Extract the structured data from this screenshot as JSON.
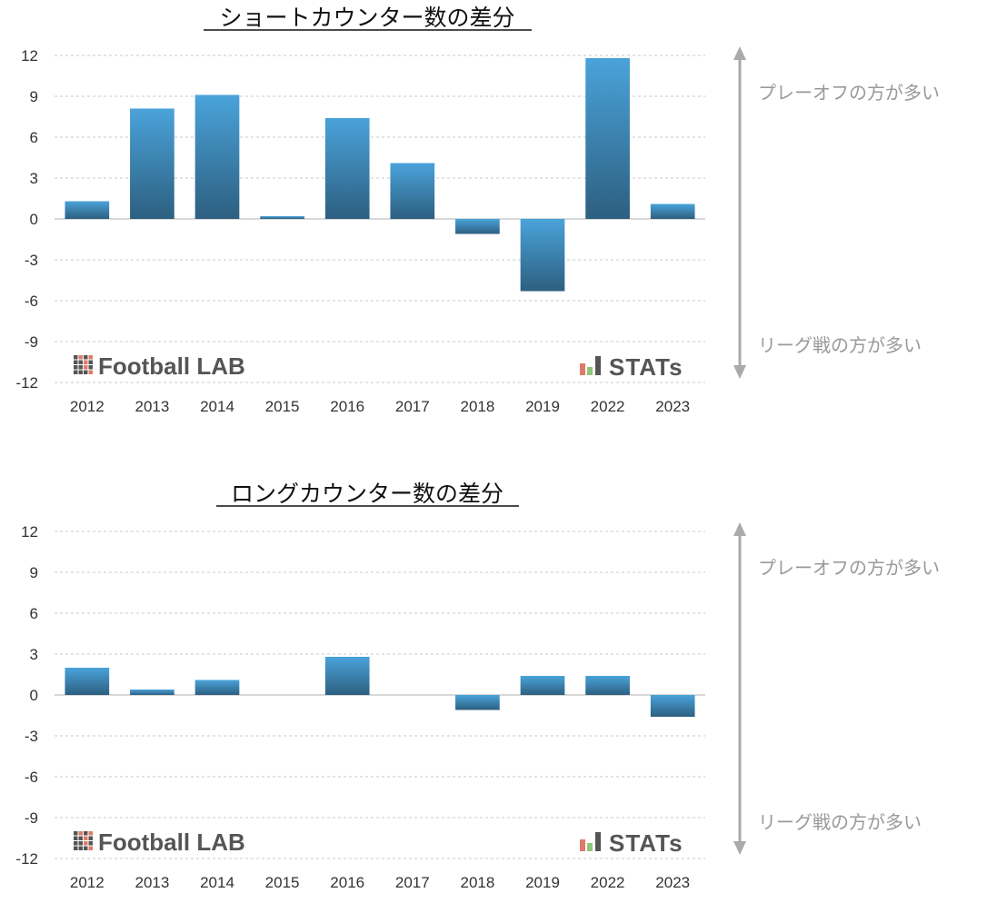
{
  "chart_data": [
    {
      "type": "bar",
      "title": "ショートカウンター数の差分",
      "categories": [
        "2012",
        "2013",
        "2014",
        "2015",
        "2016",
        "2017",
        "2018",
        "2019",
        "2022",
        "2023"
      ],
      "values": [
        1.3,
        8.1,
        9.1,
        0.2,
        7.4,
        4.1,
        -1.1,
        -5.3,
        11.8,
        1.1
      ],
      "ylim": [
        -12,
        12
      ],
      "yticks": [
        12,
        9,
        6,
        3,
        0,
        -3,
        -6,
        -9,
        -12
      ],
      "grid": true,
      "annotations": {
        "upper": "プレーオフの方が多い",
        "lower": "リーグ戦の方が多い"
      },
      "watermarks": {
        "left": "Football LAB",
        "right": "STATs"
      },
      "color": "#4a9fd6"
    },
    {
      "type": "bar",
      "title": "ロングカウンター数の差分",
      "categories": [
        "2012",
        "2013",
        "2014",
        "2015",
        "2016",
        "2017",
        "2018",
        "2019",
        "2022",
        "2023"
      ],
      "values": [
        2.0,
        0.4,
        1.1,
        0.0,
        2.8,
        0.0,
        -1.1,
        1.4,
        1.4,
        -1.6
      ],
      "ylim": [
        -12,
        12
      ],
      "yticks": [
        12,
        9,
        6,
        3,
        0,
        -3,
        -6,
        -9,
        -12
      ],
      "grid": true,
      "annotations": {
        "upper": "プレーオフの方が多い",
        "lower": "リーグ戦の方が多い"
      },
      "watermarks": {
        "left": "Football LAB",
        "right": "STATs"
      },
      "color": "#4a9fd6"
    }
  ]
}
